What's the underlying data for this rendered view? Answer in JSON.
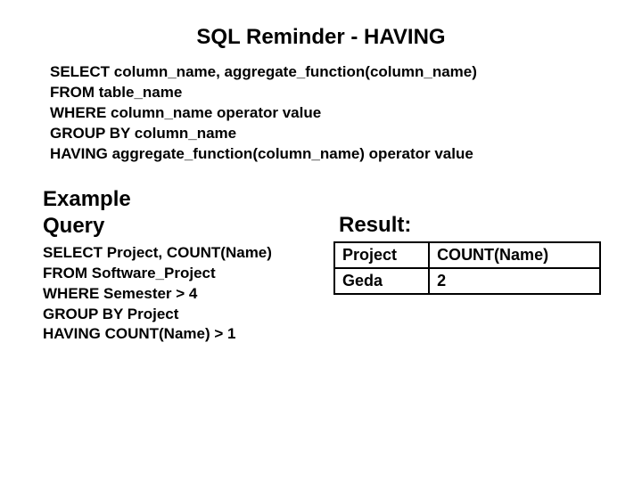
{
  "title": "SQL Reminder - HAVING",
  "syntax": {
    "l1": "SELECT column_name, aggregate_function(column_name)",
    "l2": "FROM table_name",
    "l3": "WHERE column_name operator value",
    "l4": "GROUP BY column_name",
    "l5": "HAVING aggregate_function(column_name) operator value"
  },
  "example": {
    "heading_l1": "Example",
    "heading_l2": "Query",
    "q1": "SELECT Project, COUNT(Name)",
    "q2": "FROM Software_Project",
    "q3": "WHERE Semester > 4",
    "q4": "GROUP BY Project",
    "q5": "HAVING COUNT(Name) > 1"
  },
  "result": {
    "heading": "Result:",
    "columns": [
      "Project",
      "COUNT(Name)"
    ],
    "rows": [
      [
        "Geda",
        "2"
      ]
    ]
  },
  "style": {
    "background_color": "#ffffff",
    "text_color": "#000000",
    "title_fontsize": 24,
    "body_fontsize": 17,
    "heading_fontsize": 24,
    "table_border_color": "#000000",
    "table_border_width": 2,
    "font_family": "Arial"
  }
}
